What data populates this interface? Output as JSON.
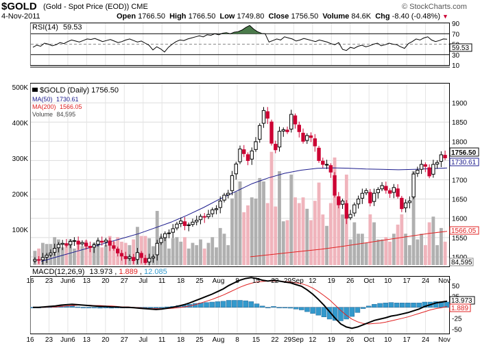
{
  "header": {
    "symbol": "$GOLD",
    "description": "(Gold - Spot Price (EOD)) CME",
    "date": "4-Nov-2011",
    "watermark": "© StockCharts.com",
    "quote": {
      "open_label": "Open",
      "open": "1766.50",
      "high_label": "High",
      "high": "1766.50",
      "low_label": "Low",
      "low": "1749.80",
      "close_label": "Close",
      "close": "1756.50",
      "volume_label": "Volume",
      "volume": "84.6K",
      "chg_label": "Chg",
      "chg": "-8.40 (-0.48%)"
    }
  },
  "colors": {
    "up_candle": "#000000",
    "down_candle": "#cc0033",
    "ma50": "#1a1a8c",
    "ma200": "#e02020",
    "volume_up": "#b0b0b0",
    "volume_down": "#f0b4bc",
    "macd_hist": "#3399cc",
    "rsi_fill": "#4a7a4a"
  },
  "chart_data": [
    {
      "type": "line",
      "title": "RSI(14) 59.53",
      "legend": "RSI(14)",
      "last": "59.53",
      "ylim": [
        10,
        90
      ],
      "yticks": [
        "90",
        "70",
        "50",
        "30",
        "10"
      ],
      "reference_lines": [
        70,
        30
      ],
      "series": [
        {
          "name": "RSI(14)",
          "values": [
            44,
            48,
            46,
            52,
            50,
            47,
            49,
            53,
            51,
            55,
            58,
            56,
            54,
            57,
            60,
            59,
            61,
            58,
            55,
            57,
            59,
            56,
            53,
            55,
            58,
            60,
            57,
            54,
            56,
            52,
            48,
            39,
            45,
            41,
            35,
            44,
            50,
            55,
            58,
            57,
            60,
            62,
            64,
            66,
            64,
            68,
            67,
            70,
            68,
            71,
            72,
            70,
            73,
            74,
            77,
            82,
            86,
            79,
            74,
            71,
            70,
            54,
            57,
            60,
            58,
            64,
            62,
            60,
            56,
            58,
            61,
            59,
            57,
            55,
            58,
            56,
            54,
            51,
            49,
            53,
            40,
            38,
            44,
            42,
            46,
            48,
            45,
            47,
            50,
            52,
            47,
            49,
            52,
            50,
            49,
            45,
            42,
            51,
            55,
            60,
            58,
            62,
            64,
            58,
            55,
            57,
            60,
            59.53
          ]
        }
      ]
    },
    {
      "type": "candlestick",
      "title": "$GOLD (Daily) 1756.50",
      "ylim": [
        1475,
        1950
      ],
      "yticks": [
        "1900",
        "1850",
        "1800",
        "1750",
        "1700",
        "1650",
        "1600",
        "1550",
        "1500"
      ],
      "close_series": [
        1493,
        1491,
        1498,
        1504,
        1510,
        1522,
        1532,
        1535,
        1530,
        1540,
        1542,
        1533,
        1537,
        1528,
        1524,
        1531,
        1541,
        1538,
        1543,
        1530,
        1522,
        1510,
        1502,
        1495,
        1500,
        1490,
        1511,
        1498,
        1485,
        1496,
        1500,
        1535,
        1548,
        1560,
        1562,
        1573,
        1585,
        1593,
        1581,
        1583,
        1590,
        1595,
        1605,
        1603,
        1610,
        1622,
        1625,
        1645,
        1660,
        1665,
        1711,
        1741,
        1780,
        1768,
        1750,
        1775,
        1799,
        1841,
        1880,
        1860,
        1795,
        1778,
        1826,
        1830,
        1825,
        1870,
        1845,
        1825,
        1800,
        1815,
        1810,
        1788,
        1750,
        1740,
        1740,
        1720,
        1660,
        1635,
        1645,
        1600,
        1610,
        1635,
        1650,
        1665,
        1672,
        1640,
        1665,
        1675,
        1685,
        1673,
        1665,
        1680,
        1657,
        1625,
        1640,
        1645,
        1715,
        1725,
        1740,
        1735,
        1710,
        1740,
        1745,
        1765,
        1757
      ],
      "ma50": {
        "label": "MA(50)",
        "last": "1730.61",
        "values": [
          1488,
          1500,
          1512,
          1524,
          1536,
          1548,
          1560,
          1575,
          1590,
          1608,
          1628,
          1650,
          1670,
          1690,
          1705,
          1717,
          1725,
          1730,
          1731,
          1730,
          1728,
          1727,
          1726,
          1727,
          1729,
          1730.61
        ]
      },
      "ma200": {
        "label": "MA(200)",
        "last": "1566.05",
        "values": [
          1500,
          1505,
          1510,
          1515,
          1520,
          1526,
          1533,
          1540,
          1547,
          1554,
          1561,
          1566.05
        ]
      },
      "volume": {
        "label": "Volume",
        "last": "84,595",
        "yticks": [
          "500K",
          "400K",
          "300K",
          "200K",
          "100K"
        ]
      },
      "last_price": "1756.50",
      "x_tick_labels": [
        "16",
        "23",
        "Jun6",
        "13",
        "20",
        "27",
        "Jul",
        "11",
        "18",
        "25",
        "Aug",
        "8",
        "15",
        "22",
        "29Sep",
        "12",
        "19",
        "26",
        "Oct",
        "10",
        "17",
        "24",
        "Nov"
      ]
    },
    {
      "type": "line",
      "title": "MACD(12,26,9) 13.973, 1.889, 12.085",
      "legend": "MACD(12,26,9)",
      "values_text": [
        "13.973",
        "1.889",
        "12.085"
      ],
      "ylim": [
        -60,
        70
      ],
      "yticks": [
        "50",
        "25",
        "0",
        "-25",
        "-50"
      ],
      "series": [
        {
          "name": "MACD",
          "values": [
            0,
            0,
            1,
            2,
            3,
            5,
            6,
            7,
            6,
            5,
            4,
            3,
            2,
            2,
            1,
            1,
            0,
            0,
            -1,
            -2,
            -3,
            -4,
            -5,
            -4,
            -2,
            0,
            3,
            6,
            10,
            15,
            20,
            25,
            30,
            36,
            42,
            50,
            56,
            62,
            66,
            68,
            66,
            62,
            60,
            62,
            60,
            58,
            56,
            52,
            48,
            40,
            30,
            18,
            5,
            -10,
            -25,
            -38,
            -45,
            -48,
            -45,
            -40,
            -35,
            -30,
            -27,
            -24,
            -20,
            -18,
            -15,
            -12,
            -8,
            -4,
            2,
            6,
            10,
            12,
            13.97
          ]
        },
        {
          "name": "Signal",
          "values": [
            0,
            0,
            0,
            1,
            1,
            2,
            3,
            4,
            5,
            5,
            5,
            4,
            4,
            3,
            3,
            2,
            1,
            1,
            0,
            -1,
            -2,
            -3,
            -3,
            -3,
            -3,
            -2,
            -1,
            1,
            3,
            6,
            10,
            14,
            18,
            23,
            28,
            34,
            40,
            46,
            51,
            55,
            58,
            59,
            60,
            60,
            60,
            59,
            58,
            56,
            54,
            50,
            44,
            36,
            27,
            17,
            5,
            -7,
            -18,
            -27,
            -33,
            -37,
            -38,
            -37,
            -36,
            -34,
            -31,
            -28,
            -25,
            -22,
            -18,
            -14,
            -10,
            -6,
            -3,
            -1,
            1.889
          ]
        }
      ],
      "histogram": {
        "name": "MACD-Histogram",
        "last": "12.085"
      },
      "x_tick_labels": [
        "16",
        "23",
        "Jun6",
        "13",
        "20",
        "27",
        "Jul",
        "11",
        "18",
        "25",
        "Aug",
        "8",
        "15",
        "22",
        "29Sep",
        "12",
        "19",
        "26",
        "Oct",
        "10",
        "17",
        "24",
        "Nov"
      ]
    }
  ]
}
